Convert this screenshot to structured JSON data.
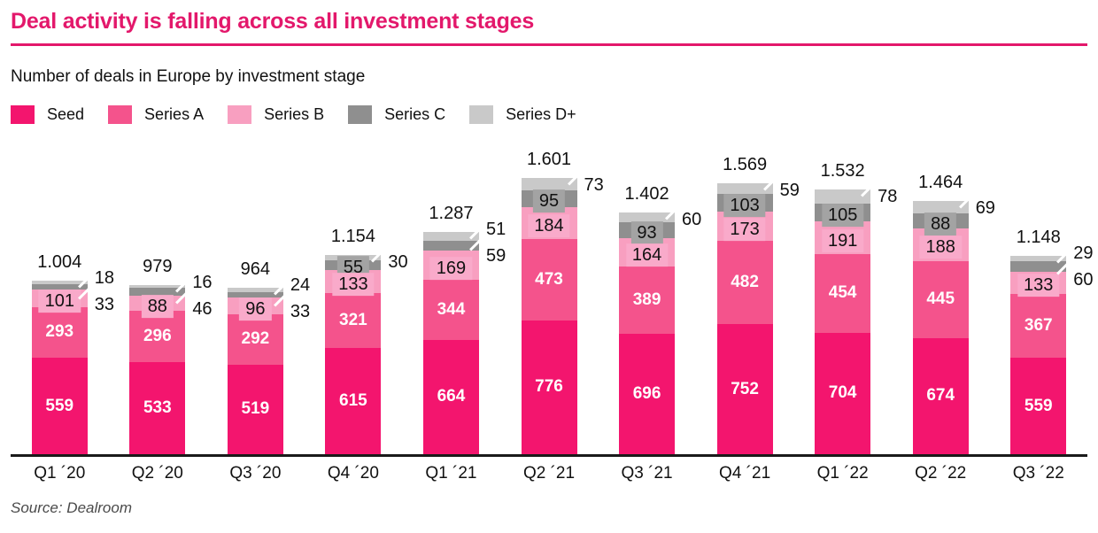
{
  "accent_color": "#E3186B",
  "header": {
    "title": "Deal activity is falling across all investment stages",
    "subtitle": "Number of deals in Europe by investment stage"
  },
  "source": "Source: Dealroom",
  "chart_data": {
    "type": "bar",
    "stacked": true,
    "title": "Deal activity is falling across all investment stages",
    "subtitle": "Number of deals in Europe by investment stage",
    "legend_position": "top",
    "grid": false,
    "categories": [
      "Q1 ´20",
      "Q2 ´20",
      "Q3 ´20",
      "Q4 ´20",
      "Q1 ´21",
      "Q2 ´21",
      "Q3 ´21",
      "Q4 ´21",
      "Q1 ´22",
      "Q2 ´22",
      "Q3 ´22"
    ],
    "series": [
      {
        "name": "Seed",
        "color": "#F3156E",
        "label_mode": "white",
        "values": [
          559,
          533,
          519,
          615,
          664,
          776,
          696,
          752,
          704,
          674,
          559
        ]
      },
      {
        "name": "Series A",
        "color": "#F4538C",
        "label_mode": "white",
        "values": [
          293,
          296,
          292,
          321,
          344,
          473,
          389,
          482,
          454,
          445,
          367
        ]
      },
      {
        "name": "Series B",
        "color": "#F89FC0",
        "tag_bg": "#F9AACA",
        "label_mode": "tag",
        "values": [
          101,
          88,
          96,
          133,
          169,
          184,
          164,
          173,
          191,
          188,
          133
        ]
      },
      {
        "name": "Series C",
        "color": "#8F8F8F",
        "tag_bg": "#A3A3A3",
        "label_mode": "tag_or_callout",
        "values": [
          33,
          46,
          33,
          55,
          59,
          95,
          93,
          103,
          105,
          88,
          60
        ]
      },
      {
        "name": "Series D+",
        "color": "#C9C9C9",
        "label_mode": "callout",
        "values": [
          18,
          16,
          24,
          30,
          51,
          73,
          60,
          59,
          78,
          69,
          29
        ]
      }
    ],
    "series_c_inside": [
      false,
      false,
      false,
      true,
      false,
      true,
      true,
      true,
      true,
      true,
      false
    ],
    "totals": [
      "1.004",
      "979",
      "964",
      "1.154",
      "1.287",
      "1.601",
      "1.402",
      "1.569",
      "1.532",
      "1.464",
      "1.148"
    ],
    "totals_numeric": [
      1004,
      979,
      964,
      1154,
      1287,
      1601,
      1402,
      1569,
      1532,
      1464,
      1148
    ]
  }
}
